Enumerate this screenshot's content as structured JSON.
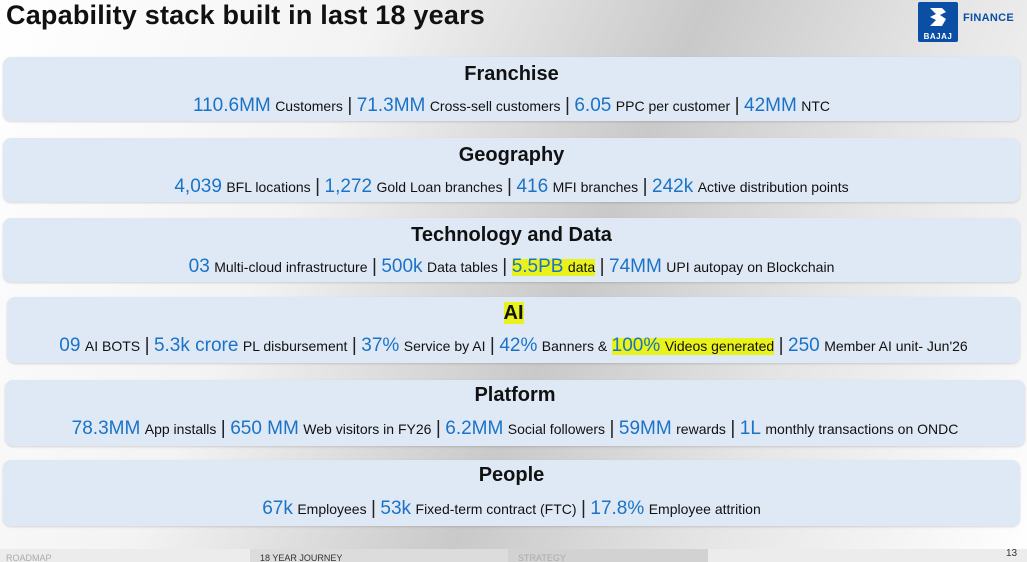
{
  "header": {
    "title": "Capability stack built in last 18 years",
    "logo_brand": "BAJAJ",
    "logo_finance": "FINANCE"
  },
  "sections": [
    {
      "title": "Franchise",
      "items": [
        {
          "num": "110.6MM",
          "text": "Customers"
        },
        {
          "num": "71.3MM",
          "text": "Cross-sell customers"
        },
        {
          "num": "6.05",
          "text": "PPC per customer"
        },
        {
          "num": "42MM",
          "text": "NTC"
        }
      ]
    },
    {
      "title": "Geography",
      "items": [
        {
          "num": "4,039",
          "text": "BFL locations"
        },
        {
          "num": "1,272",
          "text": "Gold Loan branches"
        },
        {
          "num": "416",
          "text": "MFI branches"
        },
        {
          "num": "242k",
          "text": "Active distribution points"
        }
      ]
    },
    {
      "title": "Technology and Data",
      "items": [
        {
          "num": "03",
          "text": "Multi-cloud infrastructure"
        },
        {
          "num": "500k",
          "text": "Data tables"
        },
        {
          "num": "5.5PB",
          "text": "data"
        },
        {
          "num": "74MM",
          "text": "UPI autopay on Blockchain"
        }
      ]
    },
    {
      "title": "AI",
      "items": [
        {
          "num": "09",
          "text": "AI BOTS"
        },
        {
          "num": "5.3k crore",
          "text": "PL disbursement"
        },
        {
          "num": "37%",
          "text": "Service by AI"
        },
        {
          "num": "42%",
          "text": "Banners &"
        },
        {
          "num": "100%",
          "text": "Videos generated"
        },
        {
          "num": "250",
          "text": "Member AI unit- Jun'26"
        }
      ]
    },
    {
      "title": "Platform",
      "items": [
        {
          "num": "78.3MM",
          "text": "App installs"
        },
        {
          "num": "650 MM",
          "text": "Web visitors in FY26"
        },
        {
          "num": "6.2MM",
          "text": "Social followers"
        },
        {
          "num": "59MM",
          "text": "rewards"
        },
        {
          "num": "1L",
          "text": "monthly transactions on ONDC"
        }
      ]
    },
    {
      "title": "People",
      "items": [
        {
          "num": "67k",
          "text": "Employees"
        },
        {
          "num": "53k",
          "text": "Fixed-term contract (FTC)"
        },
        {
          "num": "17.8%",
          "text": "Employee attrition"
        }
      ]
    }
  ],
  "separator": "|",
  "footer": {
    "tabs": [
      "ROADMAP",
      "18 YEAR JOURNEY",
      "STRATEGY"
    ],
    "page_number": "13"
  },
  "colors": {
    "number": "#1a73c6",
    "highlight": "#e9f21b",
    "band": "#dfe9f6",
    "brand": "#0a4fa3"
  }
}
